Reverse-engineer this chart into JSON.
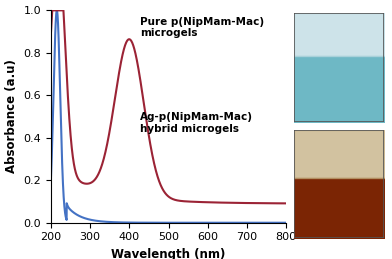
{
  "title": "",
  "xlabel": "Wavelength (nm)",
  "ylabel": "Absorbance (a.u)",
  "xlim": [
    200,
    800
  ],
  "ylim": [
    0,
    1.0
  ],
  "xticks": [
    200,
    300,
    400,
    500,
    600,
    700,
    800
  ],
  "yticks": [
    0,
    0.2,
    0.4,
    0.6,
    0.8,
    1.0
  ],
  "blue_color": "#4472C4",
  "red_color": "#9B2335",
  "label1": "Pure p(NipMam-Mac)\nmicrogels",
  "label2": "Ag-p(NipMam-Mac)\nhybrid microgels",
  "background_color": "#ffffff",
  "vial1_top": "#A8C8D0",
  "vial1_bottom": "#6AAAB8",
  "vial1_glass": "#C8DDE0",
  "vial2_top": "#C0A882",
  "vial2_bottom": "#7A2808",
  "vial2_glass": "#D0C0A0"
}
